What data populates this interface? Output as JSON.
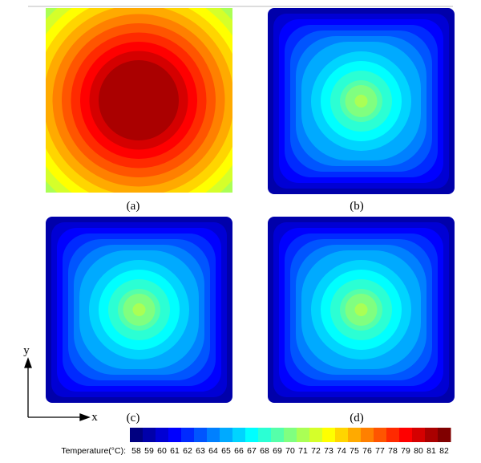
{
  "panels": [
    {
      "label": "(a)"
    },
    {
      "label": "(b)"
    },
    {
      "label": "(c)"
    },
    {
      "label": "(d)"
    }
  ],
  "axes": {
    "x": "x",
    "y": "y"
  },
  "colorbar": {
    "label": "Temperature(°C):",
    "ticks": [
      58,
      59,
      60,
      61,
      62,
      63,
      64,
      65,
      66,
      67,
      68,
      69,
      70,
      71,
      72,
      73,
      74,
      75,
      76,
      77,
      78,
      79,
      80,
      81,
      82
    ]
  }
}
